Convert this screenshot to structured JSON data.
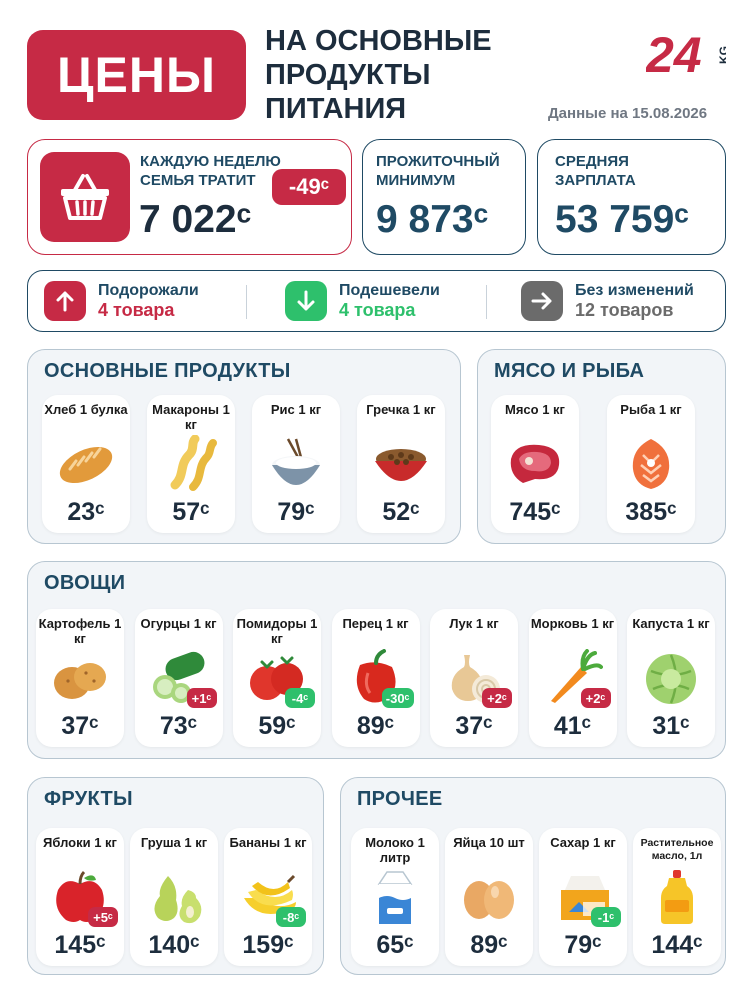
{
  "header": {
    "title": "ЦЕНЫ",
    "subtitle": "НА ОСНОВНЫЕ ПРОДУКТЫ ПИТАНИЯ",
    "date": "Данные на 15.08.2026",
    "logo_number": "24",
    "logo_suffix": "KG"
  },
  "stats": {
    "weekly": {
      "label": "КАЖДУЮ НЕДЕЛЮ СЕМЬЯ ТРАТИТ",
      "value": "7 022ᶜ",
      "change": "-49ᶜ",
      "icon": "basket-icon"
    },
    "minimum": {
      "label": "ПРОЖИТОЧНЫЙ МИНИМУМ",
      "value": "9 873ᶜ"
    },
    "salary": {
      "label": "СРЕДНЯЯ ЗАРПЛАТА",
      "value": "53 759ᶜ"
    }
  },
  "changes": {
    "up": {
      "label": "Подорожали",
      "count": "4 товара",
      "color": "#c62a45"
    },
    "down": {
      "label": "Подешевели",
      "count": "4 товара",
      "color": "#2ec06c"
    },
    "same": {
      "label": "Без изменений",
      "count": "12 товаров",
      "color": "#6b6b6b"
    }
  },
  "sections": {
    "basic": {
      "title": "ОСНОВНЫЕ ПРОДУКТЫ",
      "items": [
        {
          "name": "Хлеб 1 булка",
          "price": "23ᶜ",
          "icon": "bread-icon"
        },
        {
          "name": "Макароны 1 кг",
          "price": "57ᶜ",
          "icon": "pasta-icon"
        },
        {
          "name": "Рис 1 кг",
          "price": "79ᶜ",
          "icon": "rice-icon"
        },
        {
          "name": "Гречка 1 кг",
          "price": "52ᶜ",
          "icon": "buckwheat-icon"
        }
      ]
    },
    "meat": {
      "title": "МЯСО И РЫБА",
      "items": [
        {
          "name": "Мясо 1 кг",
          "price": "745ᶜ",
          "icon": "meat-icon"
        },
        {
          "name": "Рыба 1 кг",
          "price": "385ᶜ",
          "icon": "fish-icon"
        }
      ]
    },
    "vegetables": {
      "title": "ОВОЩИ",
      "items": [
        {
          "name": "Картофель 1 кг",
          "price": "37ᶜ",
          "icon": "potato-icon"
        },
        {
          "name": "Огурцы 1 кг",
          "price": "73ᶜ",
          "badge": "+1ᶜ",
          "badge_type": "up",
          "icon": "cucumber-icon"
        },
        {
          "name": "Помидоры 1 кг",
          "price": "59ᶜ",
          "badge": "-4ᶜ",
          "badge_type": "down",
          "icon": "tomato-icon"
        },
        {
          "name": "Перец 1 кг",
          "price": "89ᶜ",
          "badge": "-30ᶜ",
          "badge_type": "down",
          "icon": "pepper-icon"
        },
        {
          "name": "Лук 1 кг",
          "price": "37ᶜ",
          "badge": "+2ᶜ",
          "badge_type": "up",
          "icon": "onion-icon"
        },
        {
          "name": "Морковь 1 кг",
          "price": "41ᶜ",
          "badge": "+2ᶜ",
          "badge_type": "up",
          "icon": "carrot-icon"
        },
        {
          "name": "Капуста 1 кг",
          "price": "31ᶜ",
          "icon": "cabbage-icon"
        }
      ]
    },
    "fruits": {
      "title": "ФРУКТЫ",
      "items": [
        {
          "name": "Яблоки 1 кг",
          "price": "145ᶜ",
          "badge": "+5ᶜ",
          "badge_type": "up",
          "icon": "apple-icon"
        },
        {
          "name": "Груша 1 кг",
          "price": "140ᶜ",
          "icon": "pear-icon"
        },
        {
          "name": "Бананы 1 кг",
          "price": "159ᶜ",
          "badge": "-8ᶜ",
          "badge_type": "down",
          "icon": "banana-icon"
        }
      ]
    },
    "other": {
      "title": "ПРОЧЕЕ",
      "items": [
        {
          "name": "Молоко 1 литр",
          "price": "65ᶜ",
          "icon": "milk-icon"
        },
        {
          "name": "Яйца 10 шт",
          "price": "89ᶜ",
          "icon": "eggs-icon"
        },
        {
          "name": "Сахар 1 кг",
          "price": "79ᶜ",
          "badge": "-1ᶜ",
          "badge_type": "down",
          "icon": "sugar-icon"
        },
        {
          "name": "Растительное масло, 1л",
          "price": "144ᶜ",
          "icon": "oil-icon"
        }
      ]
    }
  }
}
